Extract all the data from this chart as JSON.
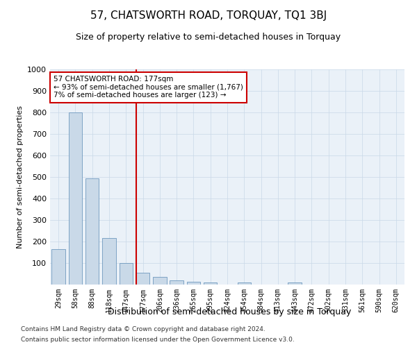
{
  "title": "57, CHATSWORTH ROAD, TORQUAY, TQ1 3BJ",
  "subtitle": "Size of property relative to semi-detached houses in Torquay",
  "xlabel": "Distribution of semi-detached houses by size in Torquay",
  "ylabel": "Number of semi-detached properties",
  "footer_line1": "Contains HM Land Registry data © Crown copyright and database right 2024.",
  "footer_line2": "Contains public sector information licensed under the Open Government Licence v3.0.",
  "bar_labels": [
    "29sqm",
    "58sqm",
    "88sqm",
    "118sqm",
    "147sqm",
    "177sqm",
    "206sqm",
    "236sqm",
    "265sqm",
    "295sqm",
    "324sqm",
    "354sqm",
    "384sqm",
    "413sqm",
    "443sqm",
    "472sqm",
    "502sqm",
    "531sqm",
    "561sqm",
    "590sqm",
    "620sqm"
  ],
  "bar_values": [
    165,
    800,
    495,
    215,
    100,
    55,
    37,
    18,
    12,
    10,
    0,
    10,
    0,
    0,
    10,
    0,
    0,
    0,
    0,
    0,
    0
  ],
  "bar_color": "#c9d9e8",
  "bar_edge_color": "#5a8ab5",
  "red_line_index": 5,
  "red_line_color": "#cc0000",
  "annotation_line1": "57 CHATSWORTH ROAD: 177sqm",
  "annotation_line2": "← 93% of semi-detached houses are smaller (1,767)",
  "annotation_line3": "7% of semi-detached houses are larger (123) →",
  "annotation_box_color": "#cc0000",
  "ylim": [
    0,
    1000
  ],
  "yticks": [
    0,
    100,
    200,
    300,
    400,
    500,
    600,
    700,
    800,
    900,
    1000
  ],
  "grid_color": "#c8d8e8",
  "bg_color": "#eaf1f8",
  "title_fontsize": 11,
  "subtitle_fontsize": 9,
  "footer_fontsize": 6.5
}
